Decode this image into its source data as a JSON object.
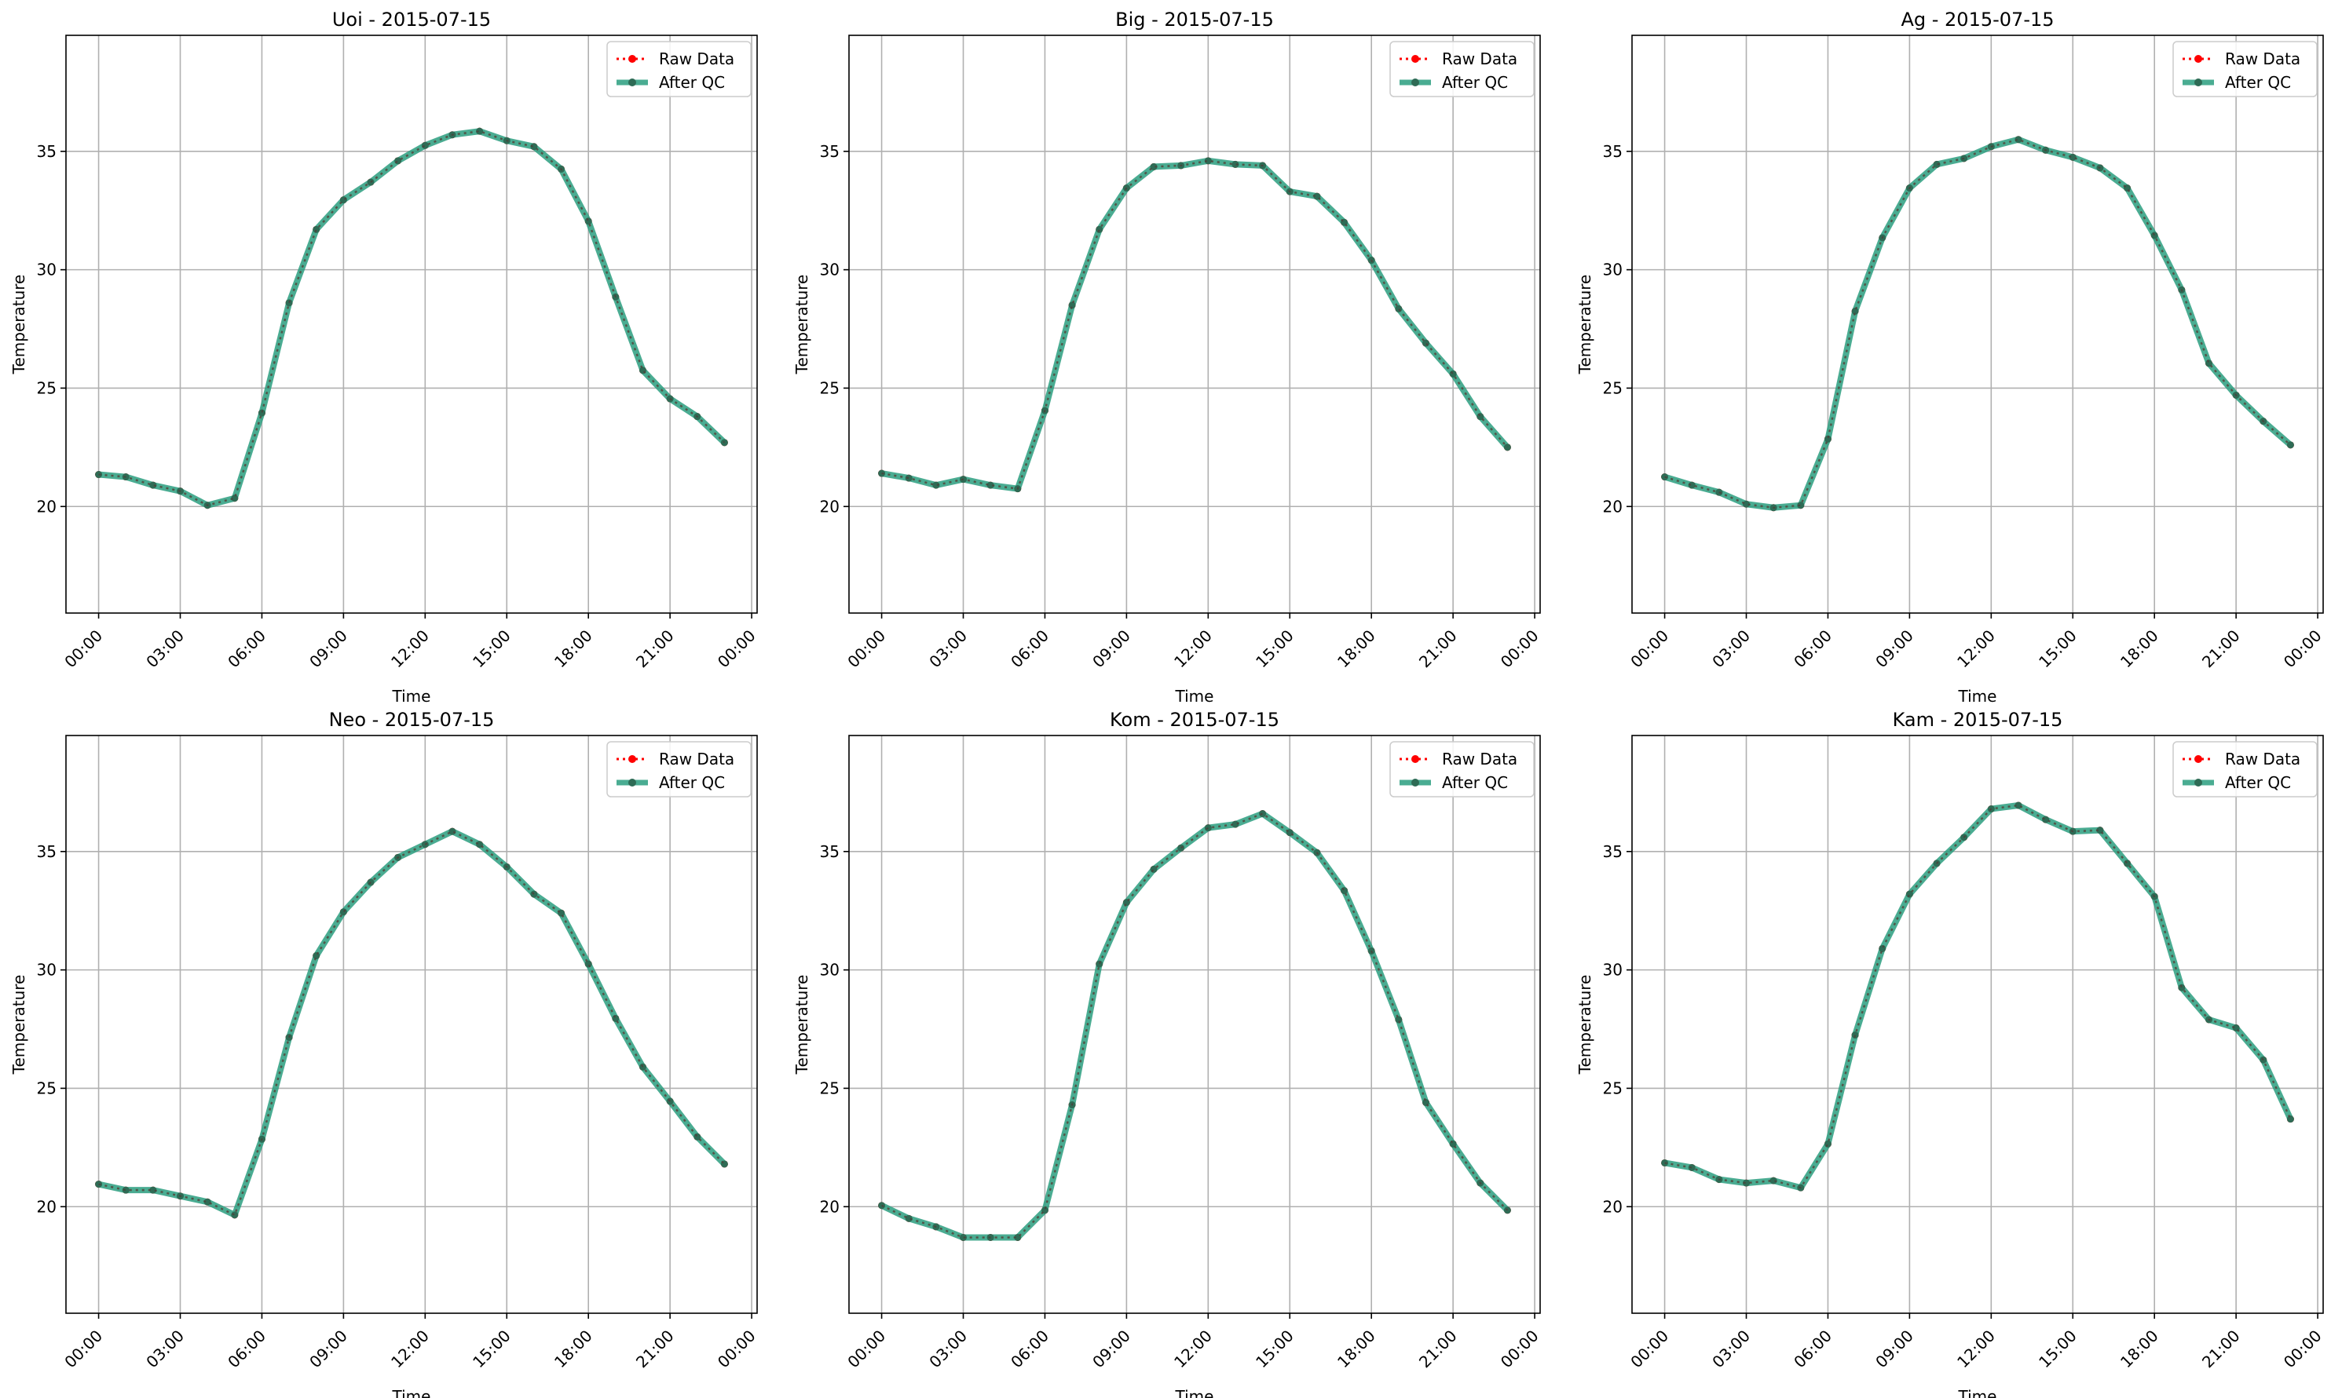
{
  "chart_data": [
    {
      "type": "line",
      "title": "Uoi - 2015-07-15",
      "xlabel": "Time",
      "ylabel": "Temperature",
      "x_hours": [
        0,
        1,
        2,
        3,
        4,
        5,
        6,
        7,
        8,
        9,
        10,
        11,
        12,
        13,
        14,
        15,
        16,
        17,
        18,
        19,
        20,
        21,
        22,
        23
      ],
      "xlim_hours": [
        -1.2,
        24.2
      ],
      "ylim": [
        15.5,
        39.9
      ],
      "xticks": [
        "00:00",
        "03:00",
        "06:00",
        "09:00",
        "12:00",
        "15:00",
        "18:00",
        "21:00",
        "00:00"
      ],
      "yticks": [
        20,
        25,
        30,
        35
      ],
      "grid": true,
      "legend_position": "upper right",
      "series": [
        {
          "name": "Raw Data",
          "color": "#ff0000",
          "style": "dotted with point markers",
          "values": [
            21.35,
            21.25,
            20.9,
            20.65,
            20.05,
            20.35,
            23.95,
            28.6,
            31.7,
            32.95,
            33.7,
            34.6,
            35.25,
            35.7,
            35.85,
            35.45,
            35.2,
            34.25,
            32.05,
            28.85,
            25.75,
            24.55,
            23.8,
            22.7
          ]
        },
        {
          "name": "After QC",
          "color": "#2a9d7f",
          "style": "solid thick with point markers",
          "values": [
            21.35,
            21.25,
            20.9,
            20.65,
            20.05,
            20.35,
            23.95,
            28.6,
            31.7,
            32.95,
            33.7,
            34.6,
            35.25,
            35.7,
            35.85,
            35.45,
            35.2,
            34.25,
            32.05,
            28.85,
            25.75,
            24.55,
            23.8,
            22.7
          ]
        }
      ]
    },
    {
      "type": "line",
      "title": "Big - 2015-07-15",
      "xlabel": "Time",
      "ylabel": "Temperature",
      "x_hours": [
        0,
        1,
        2,
        3,
        4,
        5,
        6,
        7,
        8,
        9,
        10,
        11,
        12,
        13,
        14,
        15,
        16,
        17,
        18,
        19,
        20,
        21,
        22,
        23
      ],
      "xlim_hours": [
        -1.2,
        24.2
      ],
      "ylim": [
        15.5,
        39.9
      ],
      "xticks": [
        "00:00",
        "03:00",
        "06:00",
        "09:00",
        "12:00",
        "15:00",
        "18:00",
        "21:00",
        "00:00"
      ],
      "yticks": [
        20,
        25,
        30,
        35
      ],
      "grid": true,
      "legend_position": "upper right",
      "series": [
        {
          "name": "Raw Data",
          "color": "#ff0000",
          "style": "dotted with point markers",
          "values": [
            21.4,
            21.2,
            20.9,
            21.15,
            20.9,
            20.75,
            24.05,
            28.5,
            31.7,
            33.45,
            34.35,
            34.4,
            34.6,
            34.45,
            34.4,
            33.3,
            33.1,
            32.0,
            30.4,
            28.35,
            26.9,
            25.6,
            23.8,
            22.5
          ]
        },
        {
          "name": "After QC",
          "color": "#2a9d7f",
          "style": "solid thick with point markers",
          "values": [
            21.4,
            21.2,
            20.9,
            21.15,
            20.9,
            20.75,
            24.05,
            28.5,
            31.7,
            33.45,
            34.35,
            34.4,
            34.6,
            34.45,
            34.4,
            33.3,
            33.1,
            32.0,
            30.4,
            28.35,
            26.9,
            25.6,
            23.8,
            22.5
          ]
        }
      ]
    },
    {
      "type": "line",
      "title": "Ag - 2015-07-15",
      "xlabel": "Time",
      "ylabel": "Temperature",
      "x_hours": [
        0,
        1,
        2,
        3,
        4,
        5,
        6,
        7,
        8,
        9,
        10,
        11,
        12,
        13,
        14,
        15,
        16,
        17,
        18,
        19,
        20,
        21,
        22,
        23
      ],
      "xlim_hours": [
        -1.2,
        24.2
      ],
      "ylim": [
        15.5,
        39.9
      ],
      "xticks": [
        "00:00",
        "03:00",
        "06:00",
        "09:00",
        "12:00",
        "15:00",
        "18:00",
        "21:00",
        "00:00"
      ],
      "yticks": [
        20,
        25,
        30,
        35
      ],
      "grid": true,
      "legend_position": "upper right",
      "series": [
        {
          "name": "Raw Data",
          "color": "#ff0000",
          "style": "dotted with point markers",
          "values": [
            21.25,
            20.9,
            20.6,
            20.1,
            19.95,
            20.05,
            22.85,
            28.25,
            31.35,
            33.45,
            34.45,
            34.7,
            35.2,
            35.5,
            35.05,
            34.75,
            34.3,
            33.45,
            31.45,
            29.15,
            26.05,
            24.7,
            23.6,
            22.6
          ]
        },
        {
          "name": "After QC",
          "color": "#2a9d7f",
          "style": "solid thick with point markers",
          "values": [
            21.25,
            20.9,
            20.6,
            20.1,
            19.95,
            20.05,
            22.85,
            28.25,
            31.35,
            33.45,
            34.45,
            34.7,
            35.2,
            35.5,
            35.05,
            34.75,
            34.3,
            33.45,
            31.45,
            29.15,
            26.05,
            24.7,
            23.6,
            22.6
          ]
        }
      ]
    },
    {
      "type": "line",
      "title": "Neo - 2015-07-15",
      "xlabel": "Time",
      "ylabel": "Temperature",
      "x_hours": [
        0,
        1,
        2,
        3,
        4,
        5,
        6,
        7,
        8,
        9,
        10,
        11,
        12,
        13,
        14,
        15,
        16,
        17,
        18,
        19,
        20,
        21,
        22,
        23
      ],
      "xlim_hours": [
        -1.2,
        24.2
      ],
      "ylim": [
        15.5,
        39.9
      ],
      "xticks": [
        "00:00",
        "03:00",
        "06:00",
        "09:00",
        "12:00",
        "15:00",
        "18:00",
        "21:00",
        "00:00"
      ],
      "yticks": [
        20,
        25,
        30,
        35
      ],
      "grid": true,
      "legend_position": "upper right",
      "series": [
        {
          "name": "Raw Data",
          "color": "#ff0000",
          "style": "dotted with point markers",
          "values": [
            20.95,
            20.7,
            20.7,
            20.45,
            20.2,
            19.65,
            22.85,
            27.15,
            30.6,
            32.45,
            33.7,
            34.75,
            35.3,
            35.85,
            35.3,
            34.35,
            33.2,
            32.4,
            30.25,
            27.95,
            25.9,
            24.45,
            22.95,
            21.8
          ]
        },
        {
          "name": "After QC",
          "color": "#2a9d7f",
          "style": "solid thick with point markers",
          "values": [
            20.95,
            20.7,
            20.7,
            20.45,
            20.2,
            19.65,
            22.85,
            27.15,
            30.6,
            32.45,
            33.7,
            34.75,
            35.3,
            35.85,
            35.3,
            34.35,
            33.2,
            32.4,
            30.25,
            27.95,
            25.9,
            24.45,
            22.95,
            21.8
          ]
        }
      ]
    },
    {
      "type": "line",
      "title": "Kom - 2015-07-15",
      "xlabel": "Time",
      "ylabel": "Temperature",
      "x_hours": [
        0,
        1,
        2,
        3,
        4,
        5,
        6,
        7,
        8,
        9,
        10,
        11,
        12,
        13,
        14,
        15,
        16,
        17,
        18,
        19,
        20,
        21,
        22,
        23
      ],
      "xlim_hours": [
        -1.2,
        24.2
      ],
      "ylim": [
        15.5,
        39.9
      ],
      "xticks": [
        "00:00",
        "03:00",
        "06:00",
        "09:00",
        "12:00",
        "15:00",
        "18:00",
        "21:00",
        "00:00"
      ],
      "yticks": [
        20,
        25,
        30,
        35
      ],
      "grid": true,
      "legend_position": "upper right",
      "series": [
        {
          "name": "Raw Data",
          "color": "#ff0000",
          "style": "dotted with point markers",
          "values": [
            20.05,
            19.5,
            19.15,
            18.7,
            18.7,
            18.7,
            19.85,
            24.3,
            30.25,
            32.85,
            34.25,
            35.15,
            36.0,
            36.15,
            36.6,
            35.8,
            34.95,
            33.35,
            30.8,
            27.9,
            24.4,
            22.65,
            21.0,
            19.85
          ]
        },
        {
          "name": "After QC",
          "color": "#2a9d7f",
          "style": "solid thick with point markers",
          "values": [
            20.05,
            19.5,
            19.15,
            18.7,
            18.7,
            18.7,
            19.85,
            24.3,
            30.25,
            32.85,
            34.25,
            35.15,
            36.0,
            36.15,
            36.6,
            35.8,
            34.95,
            33.35,
            30.8,
            27.9,
            24.4,
            22.65,
            21.0,
            19.85
          ]
        }
      ]
    },
    {
      "type": "line",
      "title": "Kam - 2015-07-15",
      "xlabel": "Time",
      "ylabel": "Temperature",
      "x_hours": [
        0,
        1,
        2,
        3,
        4,
        5,
        6,
        7,
        8,
        9,
        10,
        11,
        12,
        13,
        14,
        15,
        16,
        17,
        18,
        19,
        20,
        21,
        22,
        23
      ],
      "xlim_hours": [
        -1.2,
        24.2
      ],
      "ylim": [
        15.5,
        39.9
      ],
      "xticks": [
        "00:00",
        "03:00",
        "06:00",
        "09:00",
        "12:00",
        "15:00",
        "18:00",
        "21:00",
        "00:00"
      ],
      "yticks": [
        20,
        25,
        30,
        35
      ],
      "grid": true,
      "legend_position": "upper right",
      "series": [
        {
          "name": "Raw Data",
          "color": "#ff0000",
          "style": "dotted with point markers",
          "values": [
            21.85,
            21.65,
            21.15,
            21.0,
            21.1,
            20.8,
            22.65,
            27.25,
            30.9,
            33.2,
            34.5,
            35.6,
            36.8,
            36.95,
            36.35,
            35.85,
            35.9,
            34.5,
            33.1,
            29.25,
            27.9,
            27.55,
            26.2,
            23.7
          ]
        },
        {
          "name": "After QC",
          "color": "#2a9d7f",
          "style": "solid thick with point markers",
          "values": [
            21.85,
            21.65,
            21.15,
            21.0,
            21.1,
            20.8,
            22.65,
            27.25,
            30.9,
            33.2,
            34.5,
            35.6,
            36.8,
            36.95,
            36.35,
            35.85,
            35.9,
            34.5,
            33.1,
            29.25,
            27.9,
            27.55,
            26.2,
            23.7
          ]
        }
      ]
    }
  ]
}
